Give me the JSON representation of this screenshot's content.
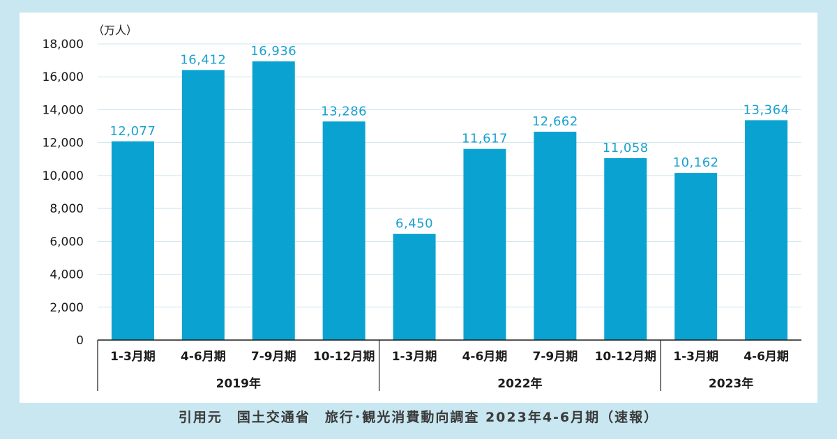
{
  "chart_data": {
    "type": "bar",
    "unit_label": "（万人）",
    "ylim": [
      0,
      18000
    ],
    "yticks": [
      "0",
      "2,000",
      "4,000",
      "6,000",
      "8,000",
      "10,000",
      "12,000",
      "14,000",
      "16,000",
      "18,000"
    ],
    "grid": true,
    "bar_color": "#0aa3d1",
    "label_color": "#1aa0cf",
    "groups": [
      {
        "label": "2019年",
        "size": 4
      },
      {
        "label": "2022年",
        "size": 4
      },
      {
        "label": "2023年",
        "size": 2
      }
    ],
    "categories": [
      "1-3月期",
      "4-6月期",
      "7-9月期",
      "10-12月期",
      "1-3月期",
      "4-6月期",
      "7-9月期",
      "10-12月期",
      "1-3月期",
      "4-6月期"
    ],
    "values": [
      12077,
      16412,
      16936,
      13286,
      6450,
      11617,
      12662,
      11058,
      10162,
      13364
    ],
    "value_labels": [
      "12,077",
      "16,412",
      "16,936",
      "13,286",
      "6,450",
      "11,617",
      "12,662",
      "11,058",
      "10,162",
      "13,364"
    ]
  },
  "source": "引用元　国土交通省　旅行･観光消費動向調査 2023年4-6月期（速報）"
}
